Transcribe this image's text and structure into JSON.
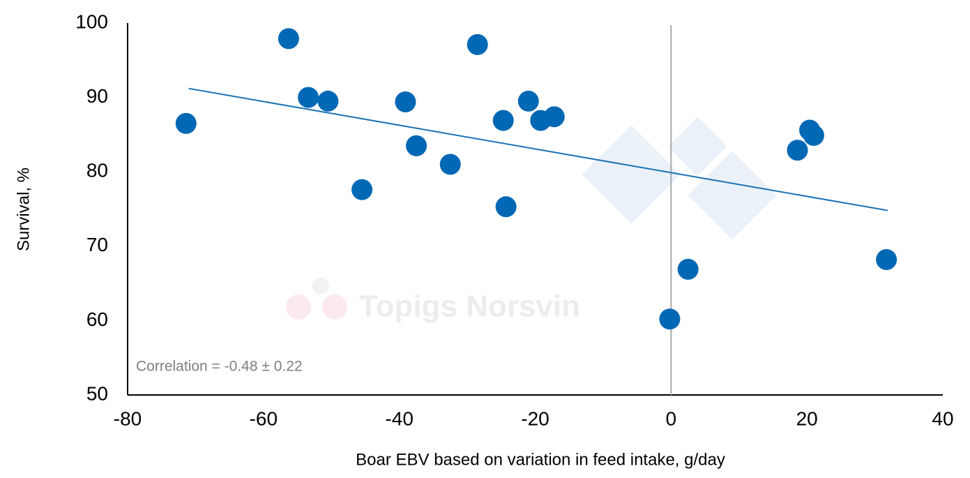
{
  "chart_data": {
    "type": "scatter",
    "x_label": "Boar EBV based on variation in feed intake, g/day",
    "y_label": "Survival, %",
    "annotation": "Correlation = -0.48 ± 0.22",
    "watermark": "Topigs Norsvin",
    "color": "#0068b4",
    "x": [
      -71.4,
      -56.3,
      -53.4,
      -50.5,
      -45.5,
      -39.1,
      -37.5,
      -32.5,
      -28.5,
      -24.7,
      -24.3,
      -21.0,
      -19.2,
      -17.2,
      -0.2,
      2.5,
      18.6,
      20.4,
      21.0,
      31.7
    ],
    "values": [
      86.5,
      97.9,
      90.0,
      89.5,
      77.6,
      89.4,
      83.5,
      81.0,
      97.1,
      86.9,
      75.3,
      89.5,
      86.9,
      87.4,
      60.2,
      66.9,
      82.9,
      85.6,
      84.9,
      68.2
    ],
    "trendline": {
      "x": [
        -71.0,
        31.9
      ],
      "y": [
        91.2,
        74.8
      ],
      "color": "#1a73b5"
    },
    "vline": 0,
    "xlim": [
      -80,
      40
    ],
    "xticks": [
      -80,
      -60,
      -40,
      -20,
      0,
      20,
      40
    ],
    "ylim": [
      50,
      100
    ],
    "yticks": [
      50,
      60,
      70,
      80,
      90,
      100
    ],
    "grid": false
  }
}
